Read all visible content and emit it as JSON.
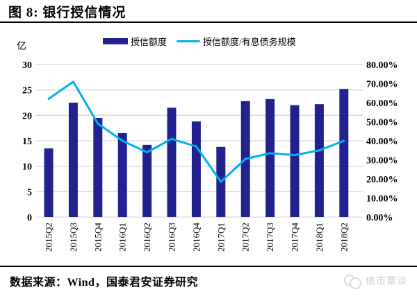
{
  "title": "图 8: 银行授信情况",
  "chart_data": {
    "type": "bar",
    "title": "银行授信情况",
    "categories": [
      "2015Q2",
      "2015Q3",
      "2015Q4",
      "2016Q1",
      "2016Q2",
      "2016Q3",
      "2016Q4",
      "2017Q1",
      "2017Q2",
      "2017Q3",
      "2017Q4",
      "2018Q1",
      "2018Q2"
    ],
    "series": [
      {
        "name": "授信额度",
        "type": "bar",
        "axis": "left",
        "values": [
          13.5,
          22.5,
          19.5,
          16.5,
          14.2,
          21.5,
          18.8,
          13.8,
          22.8,
          23.2,
          22.0,
          22.2,
          25.2
        ]
      },
      {
        "name": "授信额度/有息债务规模",
        "type": "line",
        "axis": "right",
        "values": [
          62,
          71,
          49,
          40,
          34,
          41,
          37,
          18.5,
          30.5,
          33.5,
          32.5,
          35,
          40
        ]
      }
    ],
    "left_axis": {
      "unit_label": "亿",
      "min": 0,
      "max": 30,
      "step": 5,
      "tick_labels": [
        "30",
        "25",
        "20",
        "15",
        "10",
        "5",
        "0"
      ]
    },
    "right_axis": {
      "min": 0,
      "max": 80,
      "step": 10,
      "tick_labels": [
        "80.00%",
        "70.00%",
        "60.00%",
        "50.00%",
        "40.00%",
        "30.00%",
        "20.00%",
        "10.00%",
        "0.00%"
      ]
    },
    "grid": true,
    "legend_position": "top"
  },
  "colors": {
    "bar": "#21218f",
    "line": "#00b0f0",
    "grid": "#d9d9d9",
    "axis_text": "#000000",
    "watermark": "#cfcfcf"
  },
  "footer": {
    "source": "数据来源：Wind，国泰君安证券研究"
  },
  "watermark": {
    "label": "债市覃谈"
  }
}
